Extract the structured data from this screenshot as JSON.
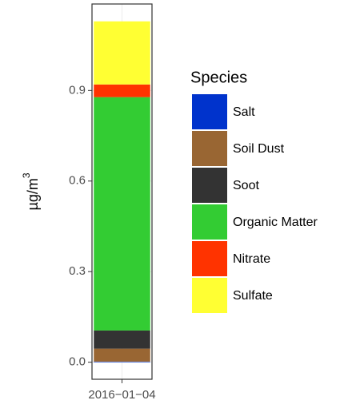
{
  "chart_data": {
    "type": "bar",
    "stacked": true,
    "categories": [
      "2016−01−04"
    ],
    "y_label": "µg/m",
    "y_label_superscript": "3",
    "legend_title": "Species",
    "series": [
      {
        "name": "Salt",
        "color": "#0033cc",
        "values": [
          0.002
        ]
      },
      {
        "name": "Soil Dust",
        "color": "#996633",
        "values": [
          0.043
        ]
      },
      {
        "name": "Soot",
        "color": "#333333",
        "values": [
          0.06
        ]
      },
      {
        "name": "Organic Matter",
        "color": "#33cc33",
        "values": [
          0.773
        ]
      },
      {
        "name": "Nitrate",
        "color": "#ff3300",
        "values": [
          0.042
        ]
      },
      {
        "name": "Sulfate",
        "color": "#ffff33",
        "values": [
          0.209
        ]
      }
    ],
    "ylim": [
      -0.0565,
      1.1865
    ],
    "yticks": [
      {
        "value": 0,
        "label": "0.0"
      },
      0.3,
      0.6,
      0.9
    ],
    "grid": true,
    "legend": "right"
  }
}
